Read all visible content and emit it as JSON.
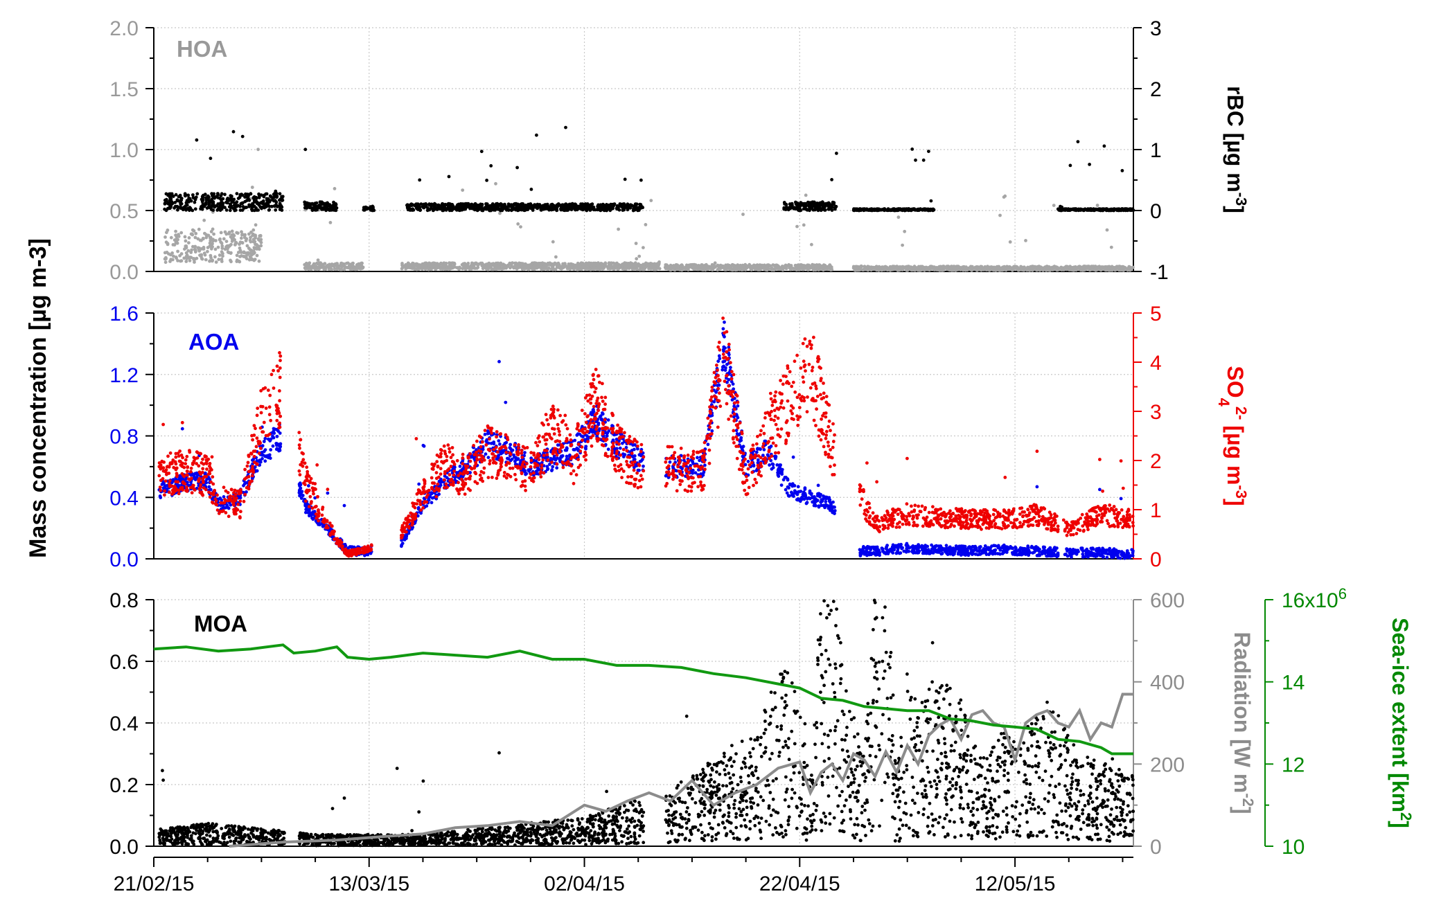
{
  "chart_data": {
    "type": "scatter",
    "shared_x": {
      "tick_labels": [
        "21/02/15",
        "13/03/15",
        "02/04/15",
        "22/04/15",
        "12/05/15"
      ],
      "tick_days": [
        0,
        20,
        40,
        60,
        80
      ],
      "xlim": [
        0,
        91
      ],
      "grid": true
    },
    "shared_ylabel": "Mass concentration [µg m-3]",
    "panels": [
      {
        "label": "HOA",
        "label_color": "#999999",
        "left_axis": {
          "ylim": [
            0,
            2.0
          ],
          "ticks": [
            "0.0",
            "0.5",
            "1.0",
            "1.5",
            "2.0"
          ],
          "tick_values": [
            0,
            0.5,
            1.0,
            1.5,
            2.0
          ],
          "color": "#999999"
        },
        "right_axis": {
          "ylim": [
            -1,
            3
          ],
          "ticks": [
            "-1",
            "0",
            "1",
            "2",
            "3"
          ],
          "tick_values": [
            -1,
            0,
            1,
            2,
            3
          ],
          "label_main": "rBC [µg m",
          "label_sup": "-3",
          "label_end": "]",
          "color": "#000000"
        },
        "series": [
          {
            "name": "HOA",
            "axis": "left",
            "color": "#a6a6a6",
            "level_segments": [
              [
                1,
                10,
                0.25
              ],
              [
                14,
                19.5,
                0.05
              ],
              [
                23,
                47,
                0.05
              ],
              [
                47.5,
                63,
                0.04
              ],
              [
                65,
                91,
                0.03
              ]
            ]
          },
          {
            "name": "rBC",
            "axis": "right",
            "color": "#000000",
            "level_segments": [
              [
                1,
                12,
                0.2
              ],
              [
                14,
                17,
                0.1
              ],
              [
                19.5,
                20.5,
                0.05
              ],
              [
                23.5,
                45.5,
                0.08
              ],
              [
                58.5,
                63.5,
                0.1
              ],
              [
                65,
                72.5,
                0.02
              ],
              [
                84,
                91,
                0.02
              ]
            ]
          }
        ]
      },
      {
        "label": "AOA",
        "label_color": "#0000ee",
        "left_axis": {
          "ylim": [
            0,
            1.6
          ],
          "ticks": [
            "0.0",
            "0.4",
            "0.8",
            "1.2",
            "1.6"
          ],
          "tick_values": [
            0,
            0.4,
            0.8,
            1.2,
            1.6
          ],
          "color": "#0000ee"
        },
        "right_axis": {
          "ylim": [
            0,
            5
          ],
          "ticks": [
            "0",
            "1",
            "2",
            "3",
            "4",
            "5"
          ],
          "tick_values": [
            0,
            1,
            2,
            3,
            4,
            5
          ],
          "label_main": "SO",
          "label_sub": "4",
          "label_sup": "2-",
          "label_unit": "[µg m",
          "label_sup2": "-3",
          "label_end": "]",
          "color": "#ee0000"
        },
        "series": [
          {
            "name": "AOA",
            "axis": "left",
            "color": "#0000ee",
            "x": [
              1,
              3,
              5,
              6,
              8,
              10,
              12,
              14,
              16,
              18,
              20,
              23,
              25,
              27,
              29,
              31,
              33,
              35,
              37,
              39,
              41,
              43,
              45,
              47,
              49,
              51,
              53,
              55,
              57,
              59,
              61,
              63,
              65,
              67,
              70,
              73,
              76,
              79,
              82,
              85,
              88,
              91
            ],
            "y": [
              0.45,
              0.5,
              0.5,
              0.35,
              0.4,
              0.7,
              0.8,
              0.35,
              0.2,
              0.05,
              0.05,
              0.1,
              0.35,
              0.5,
              0.6,
              0.75,
              0.7,
              0.6,
              0.65,
              0.7,
              0.9,
              0.75,
              0.65,
              0.6,
              0.6,
              0.6,
              1.4,
              0.6,
              0.7,
              0.45,
              0.4,
              0.35,
              0.05,
              0.05,
              0.07,
              0.06,
              0.05,
              0.06,
              0.05,
              0.04,
              0.04,
              0.03
            ]
          },
          {
            "name": "SO4",
            "axis": "right",
            "color": "#ee0000",
            "x": [
              1,
              3,
              5,
              6,
              8,
              10,
              12,
              14,
              16,
              18,
              20,
              23,
              25,
              27,
              29,
              31,
              33,
              35,
              37,
              39,
              41,
              43,
              45,
              47,
              49,
              51,
              53,
              55,
              57,
              59,
              61,
              63,
              65,
              67,
              70,
              73,
              76,
              79,
              82,
              85,
              88,
              91
            ],
            "y": [
              1.7,
              1.8,
              1.7,
              1.2,
              1.1,
              2.8,
              3.5,
              1.6,
              0.7,
              0.1,
              0.2,
              0.5,
              1.3,
              1.9,
              1.7,
              2.2,
              2.0,
              1.8,
              2.6,
              2.0,
              3.2,
              2.2,
              1.9,
              1.9,
              1.8,
              1.8,
              4.3,
              1.6,
              2.5,
              3.2,
              3.9,
              2.3,
              1.5,
              0.7,
              0.9,
              0.85,
              0.8,
              0.8,
              0.9,
              0.6,
              0.9,
              0.8
            ]
          }
        ]
      },
      {
        "label": "MOA",
        "label_color": "#000000",
        "left_axis": {
          "ylim": [
            0,
            0.8
          ],
          "ticks": [
            "0.0",
            "0.2",
            "0.4",
            "0.6",
            "0.8"
          ],
          "tick_values": [
            0,
            0.2,
            0.4,
            0.6,
            0.8
          ],
          "color": "#000000"
        },
        "right_axis": {
          "ylim": [
            0,
            600
          ],
          "ticks": [
            "0",
            "200",
            "400",
            "600"
          ],
          "tick_values": [
            0,
            200,
            400,
            600
          ],
          "label_main": "Radiation [W m",
          "label_sup": "-2",
          "label_end": "]",
          "color": "#8c8c8c"
        },
        "far_right_axis": {
          "ylim": [
            10,
            16
          ],
          "ticks": [
            "10",
            "12",
            "14",
            "16x10"
          ],
          "tick_values": [
            10,
            12,
            14,
            16
          ],
          "tick_sup": "6",
          "label_main": "Sea-ice extent [km",
          "label_sup": "2",
          "label_end": "]",
          "color": "#008800"
        },
        "series": [
          {
            "name": "MOA",
            "axis": "left",
            "color": "#000000",
            "x": [
              1,
              5,
              10,
              15,
              20,
              25,
              30,
              35,
              40,
              45,
              48,
              50,
              52,
              54,
              56,
              58,
              60,
              61,
              62,
              63,
              64,
              66,
              67,
              68,
              69,
              70,
              71,
              73,
              75,
              77,
              79,
              81,
              83,
              85,
              87,
              89,
              91
            ],
            "y": [
              0.03,
              0.04,
              0.03,
              0.02,
              0.02,
              0.02,
              0.03,
              0.04,
              0.05,
              0.08,
              0.1,
              0.12,
              0.15,
              0.18,
              0.2,
              0.3,
              0.3,
              0.12,
              0.45,
              0.55,
              0.3,
              0.15,
              0.45,
              0.55,
              0.12,
              0.3,
              0.25,
              0.3,
              0.25,
              0.15,
              0.2,
              0.2,
              0.25,
              0.2,
              0.15,
              0.15,
              0.12
            ]
          },
          {
            "name": "Radiation",
            "axis": "right",
            "color": "#8c8c8c",
            "x": [
              7,
              12,
              17,
              22,
              25,
              28,
              31,
              34,
              37,
              40,
              42,
              44,
              46,
              48,
              50,
              52,
              54,
              56,
              58,
              60,
              61,
              62,
              63,
              64,
              65,
              66,
              67,
              68,
              69,
              70,
              71,
              72,
              73,
              74,
              75,
              76,
              77,
              78,
              79,
              80,
              81,
              82,
              83,
              84,
              85,
              86,
              87,
              88,
              89,
              90,
              91
            ],
            "y": [
              0,
              10,
              15,
              25,
              30,
              45,
              50,
              60,
              50,
              100,
              85,
              110,
              130,
              110,
              160,
              100,
              130,
              150,
              190,
              205,
              130,
              180,
              200,
              160,
              225,
              210,
              170,
              230,
              180,
              245,
              200,
              270,
              295,
              310,
              260,
              320,
              330,
              300,
              290,
              210,
              300,
              320,
              330,
              300,
              290,
              330,
              260,
              300,
              290,
              370,
              370
            ]
          },
          {
            "name": "Sea-ice extent",
            "axis": "far_right",
            "color": "#119911",
            "x": [
              0,
              3,
              6,
              9,
              12,
              13,
              15,
              17,
              18,
              20,
              22,
              25,
              28,
              31,
              34,
              37,
              40,
              43,
              46,
              49,
              52,
              55,
              58,
              60,
              62,
              64,
              66,
              68,
              70,
              72,
              74,
              76,
              78,
              80,
              82,
              84,
              86,
              88,
              89,
              91
            ],
            "y": [
              14.8,
              14.85,
              14.75,
              14.8,
              14.9,
              14.7,
              14.75,
              14.85,
              14.6,
              14.55,
              14.6,
              14.7,
              14.65,
              14.6,
              14.75,
              14.55,
              14.55,
              14.4,
              14.4,
              14.35,
              14.2,
              14.1,
              13.95,
              13.85,
              13.6,
              13.55,
              13.4,
              13.35,
              13.3,
              13.3,
              13.1,
              13.05,
              12.95,
              12.9,
              12.85,
              12.6,
              12.55,
              12.4,
              12.25,
              12.25
            ]
          }
        ]
      }
    ]
  }
}
